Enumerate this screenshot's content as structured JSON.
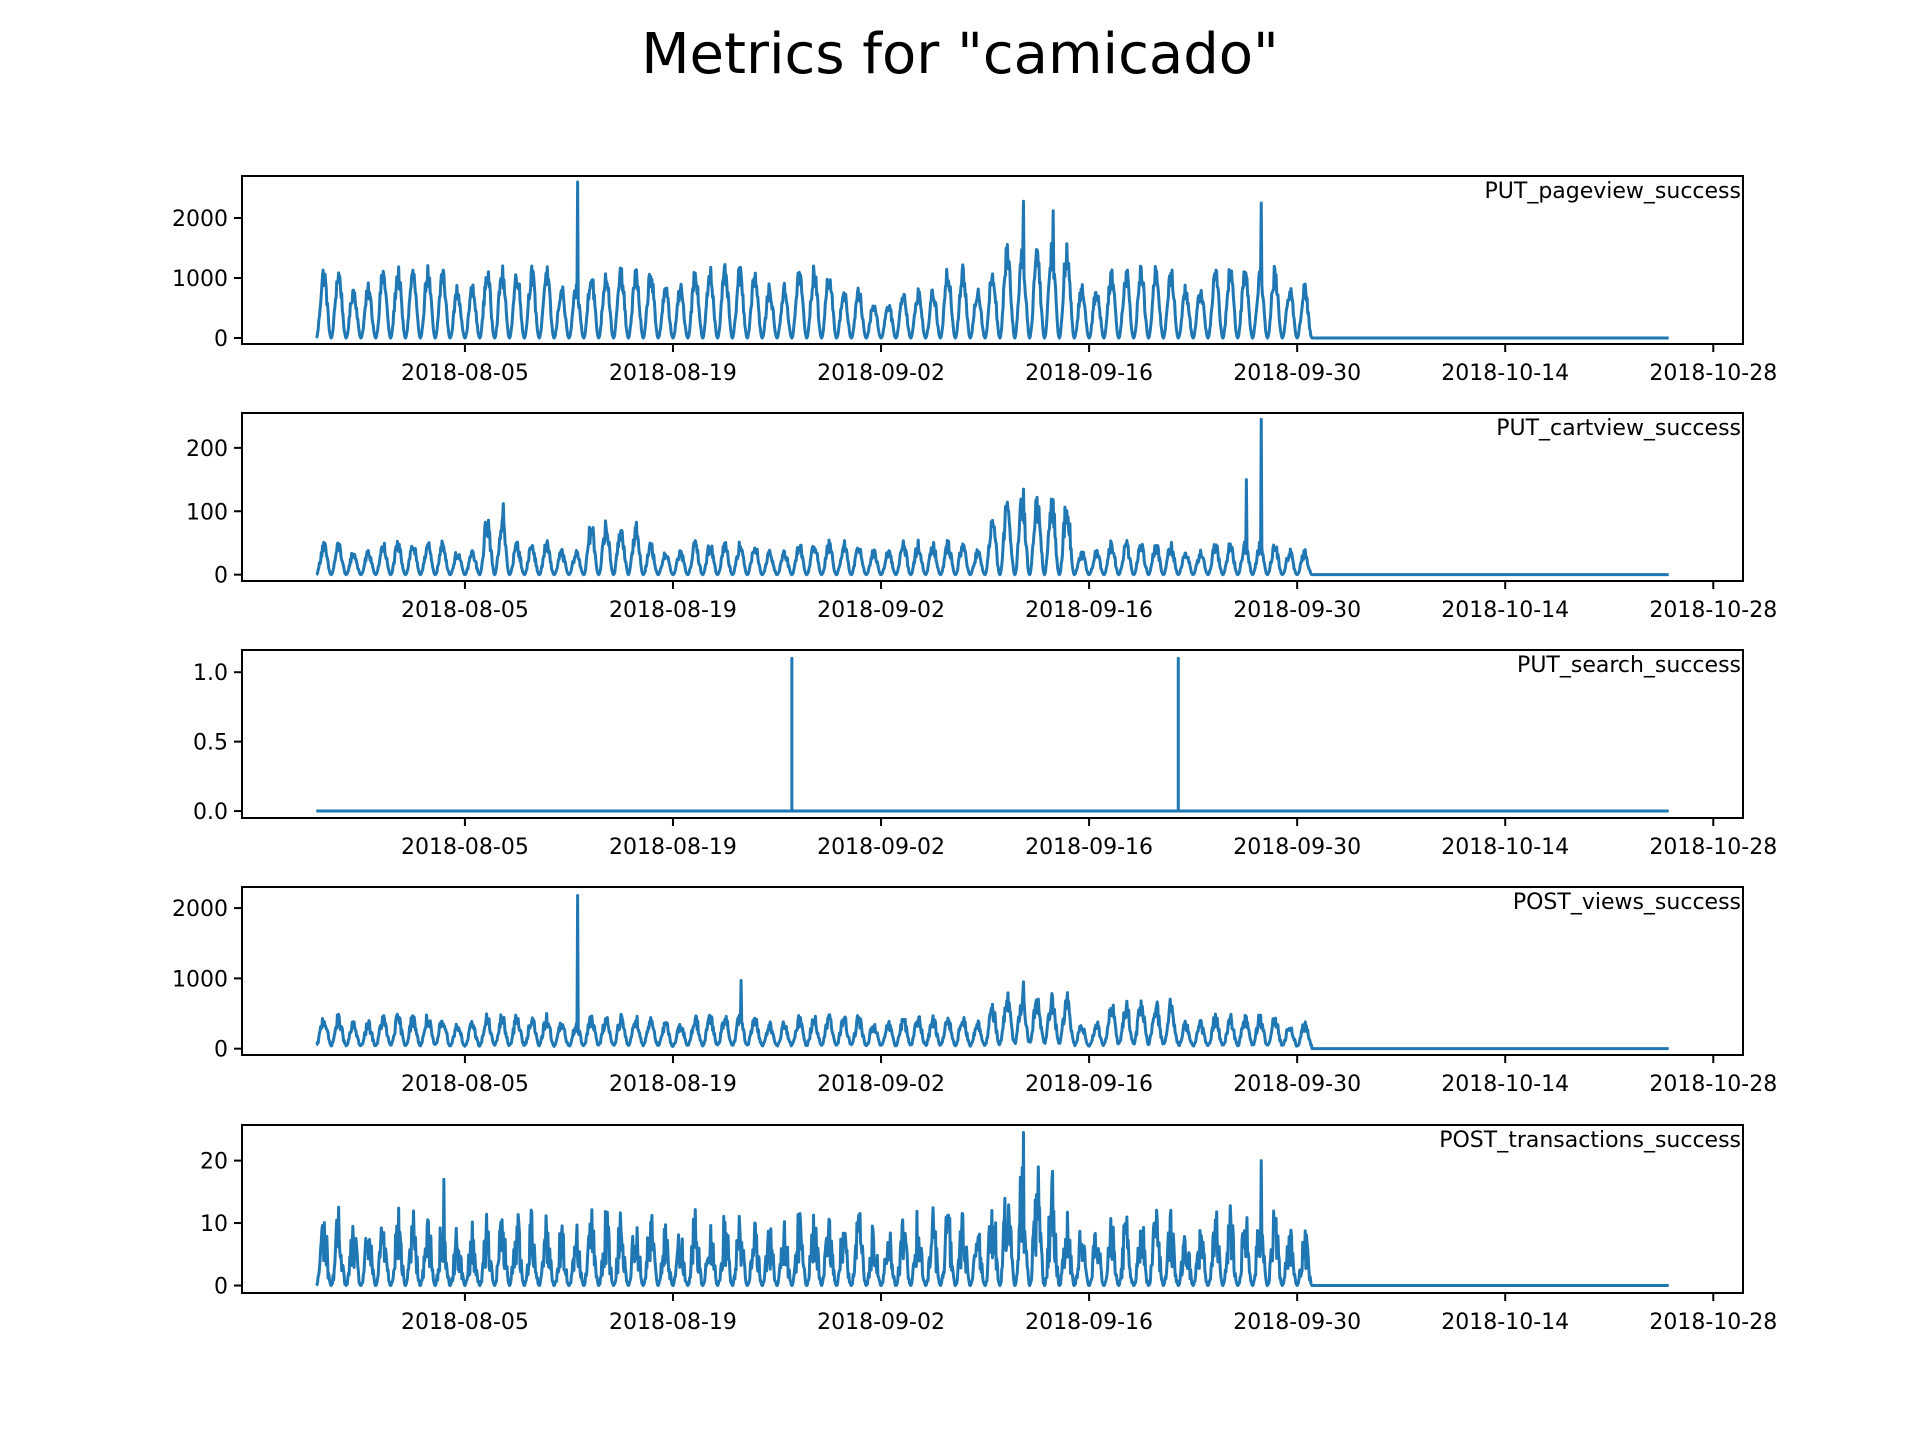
{
  "figure": {
    "title": "Metrics for \"camicado\""
  },
  "colors": {
    "series": "#1f77b4",
    "axes": "#000000",
    "background": "#ffffff"
  },
  "chart_data": [
    {
      "type": "line",
      "label": "PUT_pageview_success",
      "x_range": [
        "2018-07-26",
        "2018-10-25"
      ],
      "xlim": [
        "2018-07-21",
        "2018-10-30"
      ],
      "ylim": [
        -100,
        2700
      ],
      "yticks": [
        0,
        1000,
        2000
      ],
      "ytick_labels": [
        "0",
        "1000",
        "2000"
      ],
      "xticks": [
        "2018-08-05",
        "2018-08-19",
        "2018-09-02",
        "2018-09-16",
        "2018-09-30",
        "2018-10-14",
        "2018-10-28"
      ],
      "pattern": {
        "cutoff_date": "2018-10-01",
        "spikes": [
          [
            "2018-08-12",
            2600
          ],
          [
            "2018-09-11",
            2280
          ],
          [
            "2018-09-13",
            2120
          ],
          [
            "2018-09-27",
            2250
          ]
        ]
      },
      "grid": false,
      "legend": "none"
    },
    {
      "type": "line",
      "label": "PUT_cartview_success",
      "x_range": [
        "2018-07-26",
        "2018-10-25"
      ],
      "xlim": [
        "2018-07-21",
        "2018-10-30"
      ],
      "ylim": [
        -10,
        255
      ],
      "yticks": [
        0,
        100,
        200
      ],
      "ytick_labels": [
        "0",
        "100",
        "200"
      ],
      "xticks": [
        "2018-08-05",
        "2018-08-19",
        "2018-09-02",
        "2018-09-16",
        "2018-09-30",
        "2018-10-14",
        "2018-10-28"
      ],
      "pattern": {
        "cutoff_date": "2018-10-01",
        "spikes": [
          [
            "2018-09-27",
            245
          ],
          [
            "2018-09-26",
            150
          ],
          [
            "2018-09-11",
            135
          ],
          [
            "2018-08-07",
            112
          ]
        ]
      },
      "grid": false,
      "legend": "none"
    },
    {
      "type": "line",
      "label": "PUT_search_success",
      "x_range": [
        "2018-07-26",
        "2018-10-25"
      ],
      "xlim": [
        "2018-07-21",
        "2018-10-30"
      ],
      "ylim": [
        -0.05,
        1.16
      ],
      "yticks": [
        0.0,
        0.5,
        1.0
      ],
      "ytick_labels": [
        "0.0",
        "0.5",
        "1.0"
      ],
      "xticks": [
        "2018-08-05",
        "2018-08-19",
        "2018-09-02",
        "2018-09-16",
        "2018-09-30",
        "2018-10-14",
        "2018-10-28"
      ],
      "points": [
        [
          "2018-07-26",
          0
        ],
        [
          "2018-08-27",
          0
        ],
        [
          "2018-08-27",
          1.1
        ],
        [
          "2018-08-27",
          0
        ],
        [
          "2018-09-22",
          0
        ],
        [
          "2018-09-22",
          1.1
        ],
        [
          "2018-09-22",
          0
        ],
        [
          "2018-10-25",
          0
        ]
      ],
      "grid": false,
      "legend": "none"
    },
    {
      "type": "line",
      "label": "POST_views_success",
      "x_range": [
        "2018-07-26",
        "2018-10-25"
      ],
      "xlim": [
        "2018-07-21",
        "2018-10-30"
      ],
      "ylim": [
        -90,
        2300
      ],
      "yticks": [
        0,
        1000,
        2000
      ],
      "ytick_labels": [
        "0",
        "1000",
        "2000"
      ],
      "xticks": [
        "2018-08-05",
        "2018-08-19",
        "2018-09-02",
        "2018-09-16",
        "2018-09-30",
        "2018-10-14",
        "2018-10-28"
      ],
      "pattern": {
        "cutoff_date": "2018-10-01",
        "spikes": [
          [
            "2018-08-12",
            2180
          ],
          [
            "2018-08-23",
            970
          ],
          [
            "2018-09-11",
            950
          ]
        ]
      },
      "grid": false,
      "legend": "none"
    },
    {
      "type": "line",
      "label": "POST_transactions_success",
      "x_range": [
        "2018-07-26",
        "2018-10-25"
      ],
      "xlim": [
        "2018-07-21",
        "2018-10-30"
      ],
      "ylim": [
        -1.2,
        25.7
      ],
      "yticks": [
        0,
        10,
        20
      ],
      "ytick_labels": [
        "0",
        "10",
        "20"
      ],
      "xticks": [
        "2018-08-05",
        "2018-08-19",
        "2018-09-02",
        "2018-09-16",
        "2018-09-30",
        "2018-10-14",
        "2018-10-28"
      ],
      "pattern": {
        "cutoff_date": "2018-10-01",
        "spikes": [
          [
            "2018-09-11",
            24.5
          ],
          [
            "2018-09-12",
            19
          ],
          [
            "2018-09-27",
            20
          ],
          [
            "2018-08-03",
            17
          ]
        ]
      },
      "grid": false,
      "legend": "none"
    }
  ]
}
